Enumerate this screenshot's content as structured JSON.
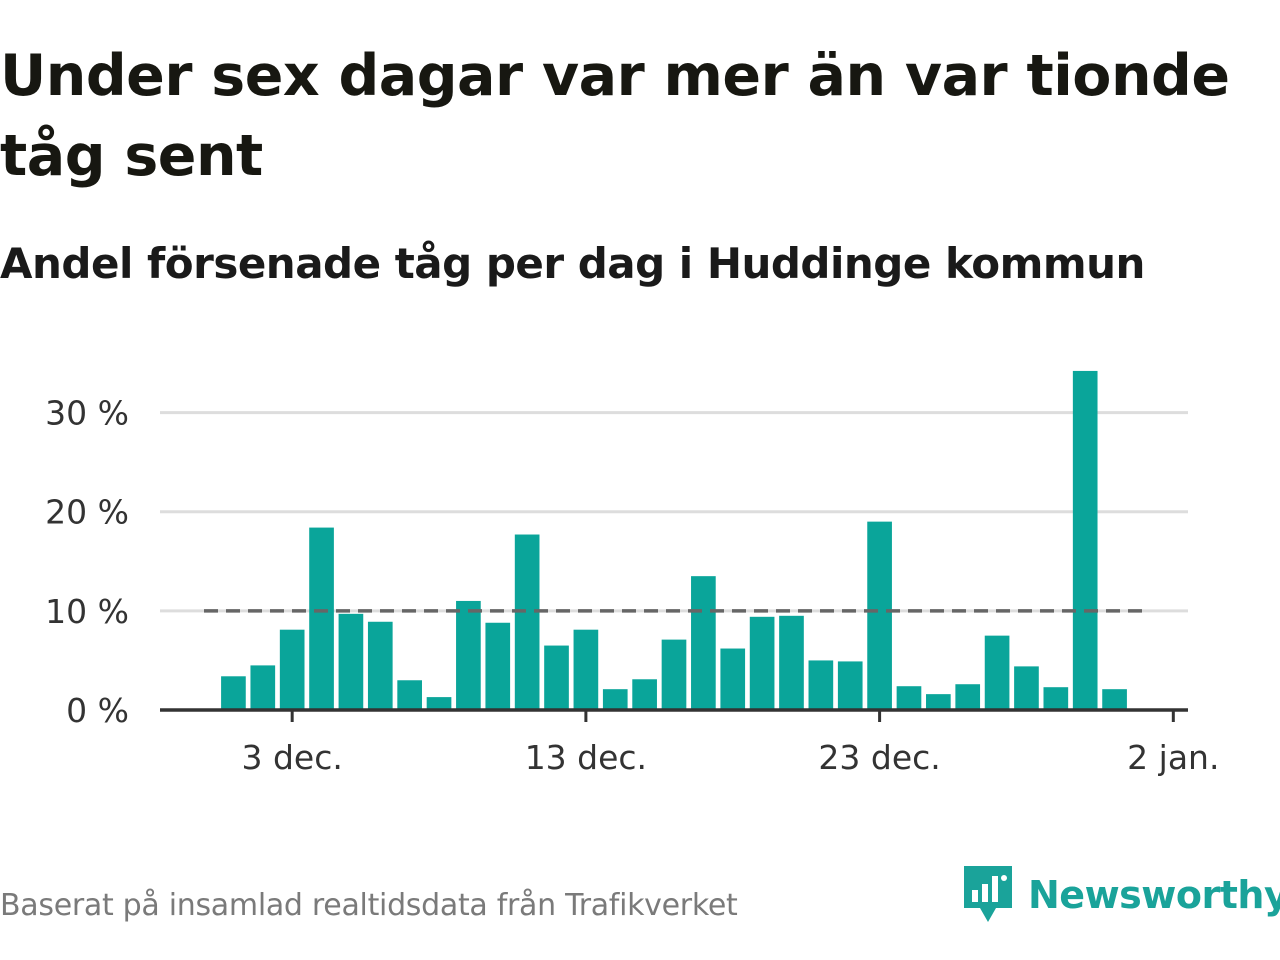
{
  "title": "Under sex dagar var mer än var tionde tåg sent",
  "subtitle": "Andel försenade tåg per dag i Huddinge kommun",
  "source": "Baserat på insamlad realtidsdata från Trafikverket",
  "brand": {
    "name": "Newsworthy",
    "icon": "newsworthy-logo-icon",
    "color": "#1aa39a"
  },
  "colors": {
    "bar": "#0aa59a",
    "reference_line": "#666666",
    "grid": "#dddddd",
    "axis": "#333333"
  },
  "chart_data": {
    "type": "bar",
    "x_axis": "date",
    "xlim": [
      "2023-11-29",
      "2024-01-02"
    ],
    "x_ticks": [
      {
        "date": "2023-12-03",
        "label": "3 dec."
      },
      {
        "date": "2023-12-13",
        "label": "13 dec."
      },
      {
        "date": "2023-12-23",
        "label": "23 dec."
      },
      {
        "date": "2024-01-02",
        "label": "2 jan."
      }
    ],
    "y_ticks": [
      {
        "value": 0,
        "label": "0 %"
      },
      {
        "value": 10,
        "label": "10 %"
      },
      {
        "value": 20,
        "label": "20 %"
      },
      {
        "value": 30,
        "label": "30 %"
      }
    ],
    "ylim": [
      0,
      35
    ],
    "grid": true,
    "reference_line": {
      "value": 10,
      "style": "dashed"
    },
    "unit": "%",
    "x": [
      "2023-12-01",
      "2023-12-02",
      "2023-12-03",
      "2023-12-04",
      "2023-12-05",
      "2023-12-06",
      "2023-12-07",
      "2023-12-08",
      "2023-12-09",
      "2023-12-10",
      "2023-12-11",
      "2023-12-12",
      "2023-12-13",
      "2023-12-14",
      "2023-12-15",
      "2023-12-16",
      "2023-12-17",
      "2023-12-18",
      "2023-12-19",
      "2023-12-20",
      "2023-12-21",
      "2023-12-22",
      "2023-12-23",
      "2023-12-24",
      "2023-12-25",
      "2023-12-26",
      "2023-12-27",
      "2023-12-28",
      "2023-12-29",
      "2023-12-30",
      "2023-12-31"
    ],
    "values": [
      3.4,
      4.5,
      8.1,
      18.4,
      9.7,
      8.9,
      3.0,
      1.3,
      11.0,
      8.8,
      17.7,
      6.5,
      8.1,
      2.1,
      3.1,
      7.1,
      13.5,
      6.2,
      9.4,
      9.5,
      5.0,
      4.9,
      19.0,
      2.4,
      1.6,
      2.6,
      7.5,
      4.4,
      2.3,
      34.2,
      2.1
    ]
  }
}
